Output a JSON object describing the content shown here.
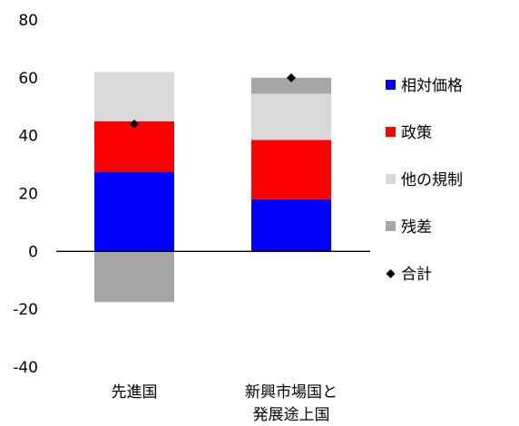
{
  "chart_data": {
    "type": "bar",
    "stacked": true,
    "categories": [
      [
        "先進国"
      ],
      [
        "新興市場国と",
        "発展途上国"
      ]
    ],
    "series": [
      {
        "name": "相対価格",
        "color": "#0000ff",
        "values": [
          27.5,
          18
        ]
      },
      {
        "name": "政策",
        "color": "#ff0000",
        "values": [
          17.5,
          20.5
        ]
      },
      {
        "name": "他の規制",
        "color": "#d9d9d9",
        "values": [
          17,
          16
        ]
      },
      {
        "name": "残差",
        "color": "#a6a6a6",
        "values": [
          -17.5,
          5.5
        ]
      }
    ],
    "total": {
      "name": "合計",
      "marker": "diamond",
      "color": "#000000",
      "values": [
        44,
        60
      ]
    },
    "ylim": [
      -40,
      80
    ],
    "yticks": [
      -40,
      -20,
      0,
      20,
      40,
      60,
      80
    ],
    "legend_position": "right",
    "grid": false
  }
}
